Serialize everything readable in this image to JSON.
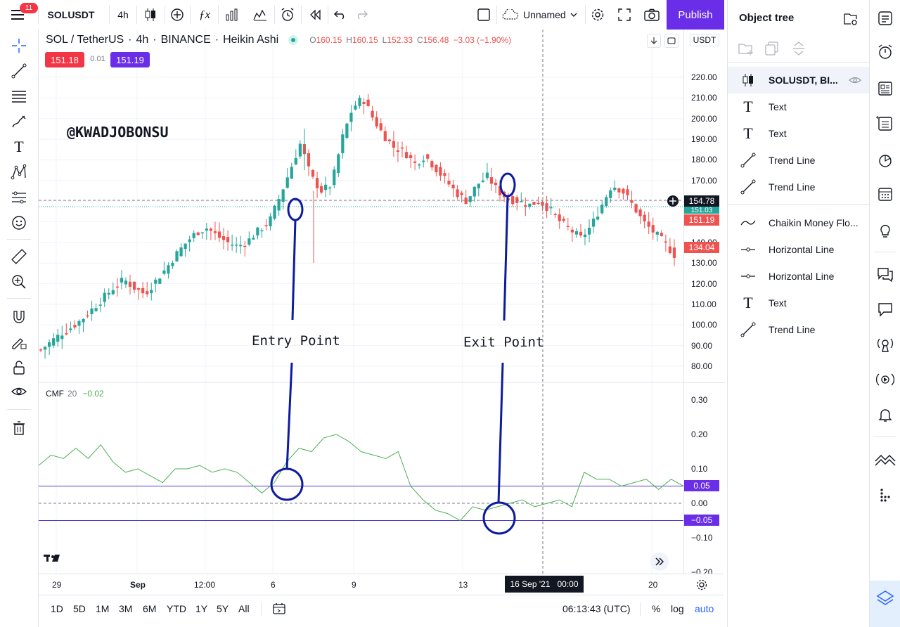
{
  "topbar": {
    "notifications": "11",
    "symbol": "SOLUSDT",
    "interval": "4h",
    "layout_name": "Unnamed",
    "publish": "Publish"
  },
  "legend": {
    "title": "SOL / TetherUS",
    "interval": "4h",
    "exchange": "BINANCE",
    "chart_type": "Heikin Ashi",
    "o_label": "O",
    "o": "160.15",
    "h_label": "H",
    "h": "160.15",
    "l_label": "L",
    "l": "152.33",
    "c_label": "C",
    "c": "156.48",
    "change": "−3.03 (−1.90%)",
    "bid": "151.18",
    "spread": "0.01",
    "ask": "151.19"
  },
  "annotations": {
    "watermark": "@KWADJOBONSU",
    "entry": "Entry Point",
    "exit": "Exit Point"
  },
  "indicator": {
    "name": "CMF",
    "length": "20",
    "value": "−0.02"
  },
  "price_scale": {
    "currency": "USDT",
    "ticks": [
      "220.00",
      "210.00",
      "200.00",
      "190.00",
      "180.00",
      "170.00",
      "160.00",
      "150.00",
      "140.00",
      "130.00",
      "120.00",
      "110.00",
      "100.00",
      "90.00",
      "80.00"
    ],
    "crosshair": "154.78",
    "green_badge": "151.03",
    "red_badge": "151.19",
    "red_badge2": "134.04"
  },
  "cmf_scale": {
    "ticks": [
      "0.30",
      "0.20",
      "0.10",
      "0.00",
      "−0.10",
      "−0.20"
    ],
    "upper_level": "0.05",
    "lower_level": "−0.05"
  },
  "time_axis": {
    "labels": [
      "29",
      "Sep",
      "12:00",
      "6",
      "9",
      "13",
      "20"
    ],
    "crosshair": "16 Sep '21   00:00"
  },
  "bottombar": {
    "ranges": [
      "1D",
      "5D",
      "1M",
      "3M",
      "6M",
      "YTD",
      "1Y",
      "5Y",
      "All"
    ],
    "clock": "06:13:43 (UTC)",
    "percent": "%",
    "log": "log",
    "auto": "auto"
  },
  "object_tree": {
    "title": "Object tree",
    "items": [
      {
        "label": "SOLUSDT, BI...",
        "icon": "candles-icon"
      },
      {
        "label": "Text",
        "icon": "text-icon"
      },
      {
        "label": "Text",
        "icon": "text-icon"
      },
      {
        "label": "Trend Line",
        "icon": "trend-line-icon"
      },
      {
        "label": "Trend Line",
        "icon": "trend-line-icon"
      },
      {
        "label": "Chaikin Money Flo...",
        "icon": "indicator-wave-icon"
      },
      {
        "label": "Horizontal Line",
        "icon": "horizontal-line-icon"
      },
      {
        "label": "Horizontal Line",
        "icon": "horizontal-line-icon"
      },
      {
        "label": "Text",
        "icon": "text-icon"
      },
      {
        "label": "Trend Line",
        "icon": "trend-line-icon"
      }
    ]
  },
  "colors": {
    "up": "#26a69a",
    "down": "#ef5350",
    "accent": "#6a2ee8",
    "annotation": "#0d1b9e",
    "cmf_line": "#4caf50"
  },
  "chart_data": [
    {
      "type": "candlestick",
      "title": "SOL / TetherUS 4h BINANCE Heikin Ashi",
      "ylim": [
        80,
        220
      ],
      "x_labels": [
        "29",
        "Sep",
        "12:00",
        "6",
        "9",
        "13",
        "16 Sep '21",
        "20"
      ],
      "approx_close_path": [
        88,
        92,
        96,
        99,
        103,
        108,
        113,
        118,
        122,
        118,
        115,
        121,
        127,
        134,
        140,
        145,
        147,
        143,
        140,
        138,
        141,
        146,
        150,
        162,
        175,
        188,
        172,
        165,
        168,
        190,
        205,
        210,
        200,
        192,
        186,
        184,
        178,
        182,
        176,
        170,
        164,
        160,
        168,
        172,
        165,
        161,
        160,
        158,
        160,
        156,
        150,
        146,
        142,
        148,
        158,
        168,
        165,
        158,
        150,
        145,
        140,
        134
      ]
    },
    {
      "type": "line",
      "series": [
        {
          "name": "CMF 20"
        }
      ],
      "ylim": [
        -0.2,
        0.3
      ],
      "levels": [
        0.05,
        0.0,
        -0.05
      ],
      "values": [
        0.11,
        0.14,
        0.13,
        0.16,
        0.13,
        0.17,
        0.12,
        0.09,
        0.1,
        0.08,
        0.06,
        0.1,
        0.1,
        0.11,
        0.09,
        0.1,
        0.09,
        0.06,
        0.03,
        0.06,
        0.12,
        0.16,
        0.15,
        0.19,
        0.2,
        0.18,
        0.15,
        0.14,
        0.13,
        0.15,
        0.05,
        0.01,
        -0.02,
        -0.03,
        -0.05,
        -0.01,
        -0.02,
        -0.01,
        0.0,
        0.01,
        -0.01,
        0.0,
        0.01,
        -0.01,
        0.09,
        0.07,
        0.07,
        0.05,
        0.06,
        0.07,
        0.04,
        0.07,
        0.05
      ]
    }
  ]
}
